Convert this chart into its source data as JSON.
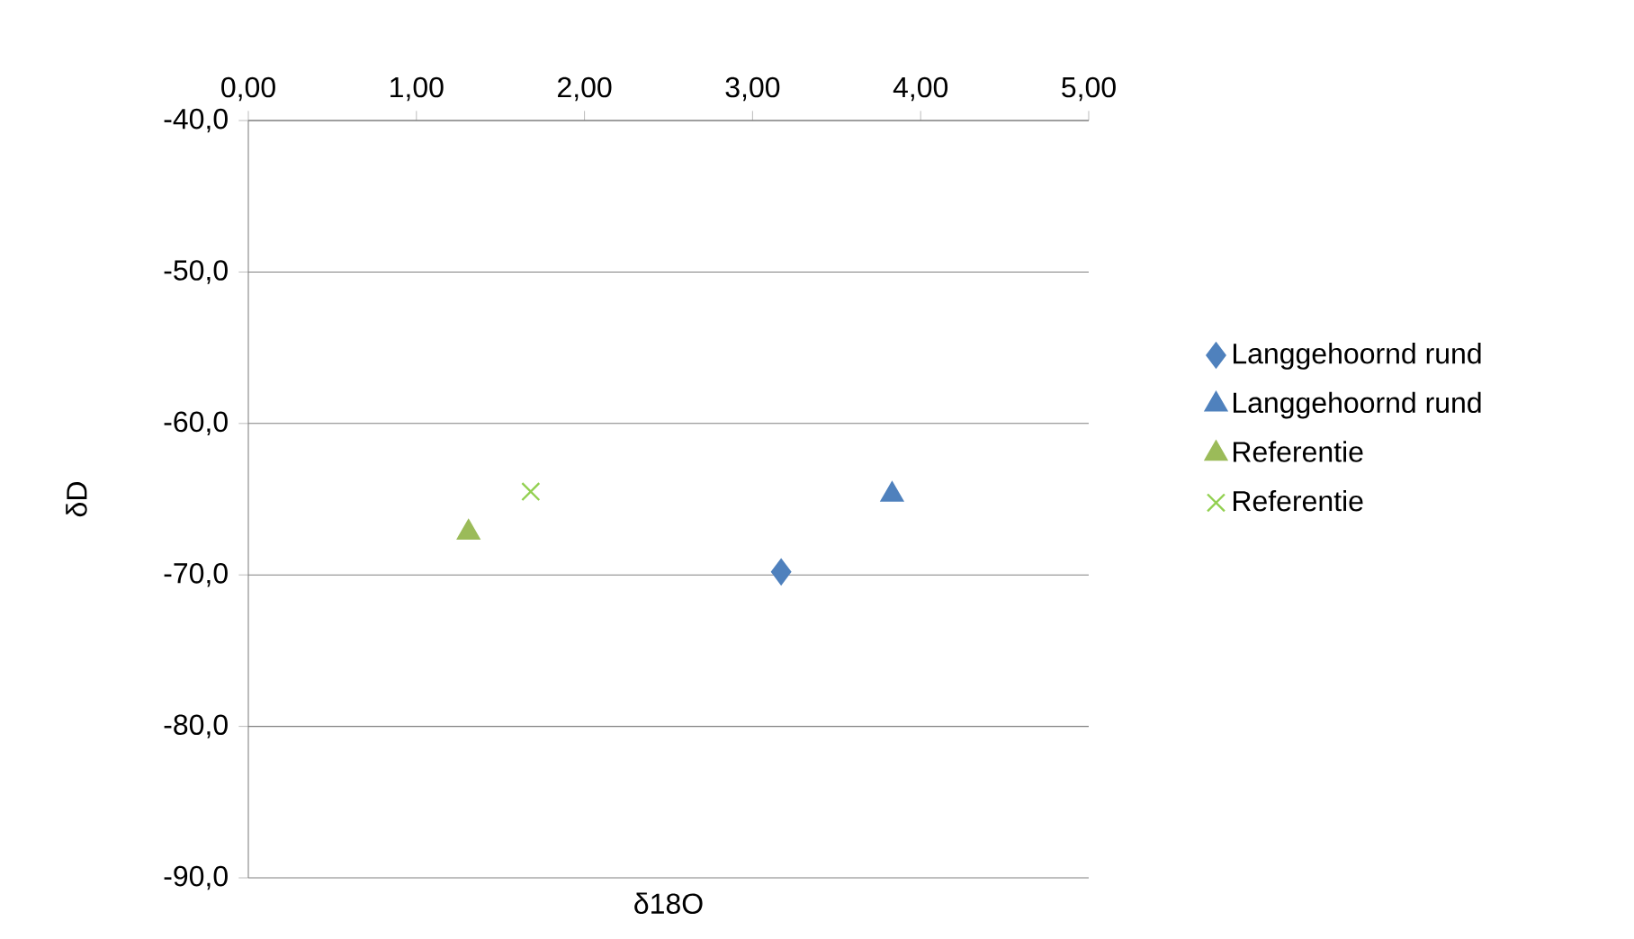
{
  "chart_data": {
    "type": "scatter",
    "xlabel": "δ18O",
    "ylabel": "δD",
    "xlim": [
      0,
      5
    ],
    "ylim": [
      -90,
      -40
    ],
    "xticks": [
      {
        "value": 0,
        "label": "0,00"
      },
      {
        "value": 1,
        "label": "1,00"
      },
      {
        "value": 2,
        "label": "2,00"
      },
      {
        "value": 3,
        "label": "3,00"
      },
      {
        "value": 4,
        "label": "4,00"
      },
      {
        "value": 5,
        "label": "5,00"
      }
    ],
    "yticks": [
      {
        "value": -90,
        "label": "-90,0"
      },
      {
        "value": -80,
        "label": "-80,0"
      },
      {
        "value": -70,
        "label": "-70,0"
      },
      {
        "value": -60,
        "label": "-60,0"
      },
      {
        "value": -50,
        "label": "-50,0"
      },
      {
        "value": -40,
        "label": "-40,0"
      }
    ],
    "grid": "y",
    "legend": "right",
    "series": [
      {
        "name": "Langgehoornd rund",
        "color": "#4f81bd",
        "marker": "diamond",
        "x": [
          3.17
        ],
        "values": [
          -69.8
        ]
      },
      {
        "name": "Langgehoornd rund",
        "color": "#4f81bd",
        "marker": "triangle",
        "x": [
          3.83
        ],
        "values": [
          -64.7
        ]
      },
      {
        "name": "Referentie",
        "color": "#9bbb59",
        "marker": "triangle",
        "x": [
          1.31
        ],
        "values": [
          -67.2
        ]
      },
      {
        "name": "Referentie",
        "color": "#92d050",
        "marker": "cross",
        "x": [
          1.68
        ],
        "values": [
          -64.5
        ]
      }
    ]
  }
}
